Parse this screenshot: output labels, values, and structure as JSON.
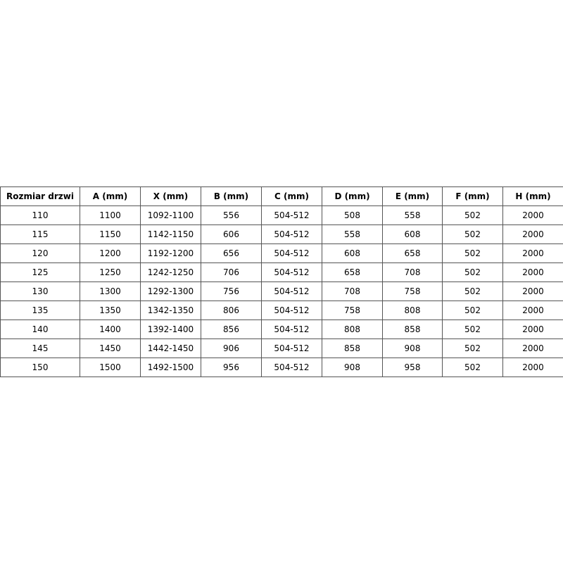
{
  "table": {
    "headers": [
      "Rozmiar drzwi",
      "A (mm)",
      "X (mm)",
      "B (mm)",
      "C (mm)",
      "D (mm)",
      "E (mm)",
      "F (mm)",
      "H (mm)"
    ],
    "rows": [
      [
        "110",
        "1100",
        "1092-1100",
        "556",
        "504-512",
        "508",
        "558",
        "502",
        "2000"
      ],
      [
        "115",
        "1150",
        "1142-1150",
        "606",
        "504-512",
        "558",
        "608",
        "502",
        "2000"
      ],
      [
        "120",
        "1200",
        "1192-1200",
        "656",
        "504-512",
        "608",
        "658",
        "502",
        "2000"
      ],
      [
        "125",
        "1250",
        "1242-1250",
        "706",
        "504-512",
        "658",
        "708",
        "502",
        "2000"
      ],
      [
        "130",
        "1300",
        "1292-1300",
        "756",
        "504-512",
        "708",
        "758",
        "502",
        "2000"
      ],
      [
        "135",
        "1350",
        "1342-1350",
        "806",
        "504-512",
        "758",
        "808",
        "502",
        "2000"
      ],
      [
        "140",
        "1400",
        "1392-1400",
        "856",
        "504-512",
        "808",
        "858",
        "502",
        "2000"
      ],
      [
        "145",
        "1450",
        "1442-1450",
        "906",
        "504-512",
        "858",
        "908",
        "502",
        "2000"
      ],
      [
        "150",
        "1500",
        "1492-1500",
        "956",
        "504-512",
        "908",
        "958",
        "502",
        "2000"
      ]
    ]
  }
}
